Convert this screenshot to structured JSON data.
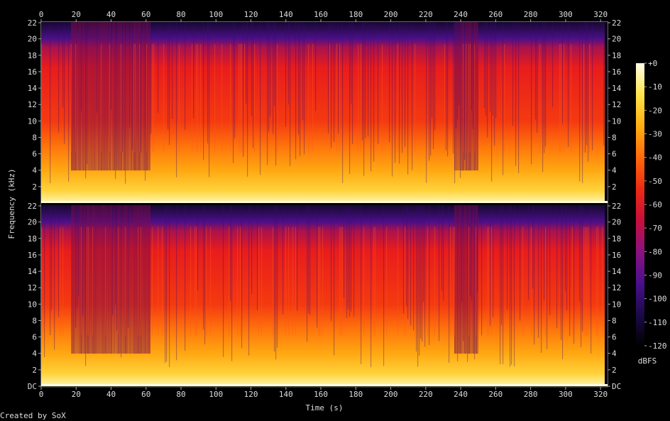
{
  "chart_data": {
    "type": "heatmap",
    "subtype": "spectrogram",
    "title": "",
    "xlabel": "Time (s)",
    "ylabel": "Frequency (kHz)",
    "x_ticks": [
      0,
      20,
      40,
      60,
      80,
      100,
      120,
      140,
      160,
      180,
      200,
      220,
      240,
      260,
      280,
      300,
      320
    ],
    "xlim": [
      0,
      324
    ],
    "y_tick_labels": [
      "DC",
      "2",
      "4",
      "6",
      "8",
      "10",
      "12",
      "14",
      "16",
      "18",
      "20",
      "22"
    ],
    "y_ticks": [
      0,
      2,
      4,
      6,
      8,
      10,
      12,
      14,
      16,
      18,
      20,
      22
    ],
    "ylim": [
      0,
      22.05
    ],
    "channels": 2,
    "colorbar": {
      "label": "dBFS",
      "ticks": [
        "+0",
        "-10",
        "-20",
        "-30",
        "-40",
        "-50",
        "-60",
        "-70",
        "-80",
        "-90",
        "-100",
        "-110",
        "-120"
      ],
      "range": [
        -120,
        0
      ],
      "colors": [
        "#000000",
        "#1c0a4a",
        "#4b0f8e",
        "#8a1280",
        "#c80f3a",
        "#ee2a14",
        "#ff6a0a",
        "#ffae12",
        "#ffe54a",
        "#ffffe8"
      ]
    },
    "segments": [
      {
        "t": [
          0,
          17
        ],
        "level": "medium"
      },
      {
        "t": [
          17,
          62
        ],
        "level": "quiet"
      },
      {
        "t": [
          62,
          236
        ],
        "level": "loud"
      },
      {
        "t": [
          236,
          250
        ],
        "level": "quiet"
      },
      {
        "t": [
          250,
          322
        ],
        "level": "loud"
      },
      {
        "t": [
          322,
          324
        ],
        "level": "silent"
      }
    ],
    "footer": "Created by SoX"
  }
}
